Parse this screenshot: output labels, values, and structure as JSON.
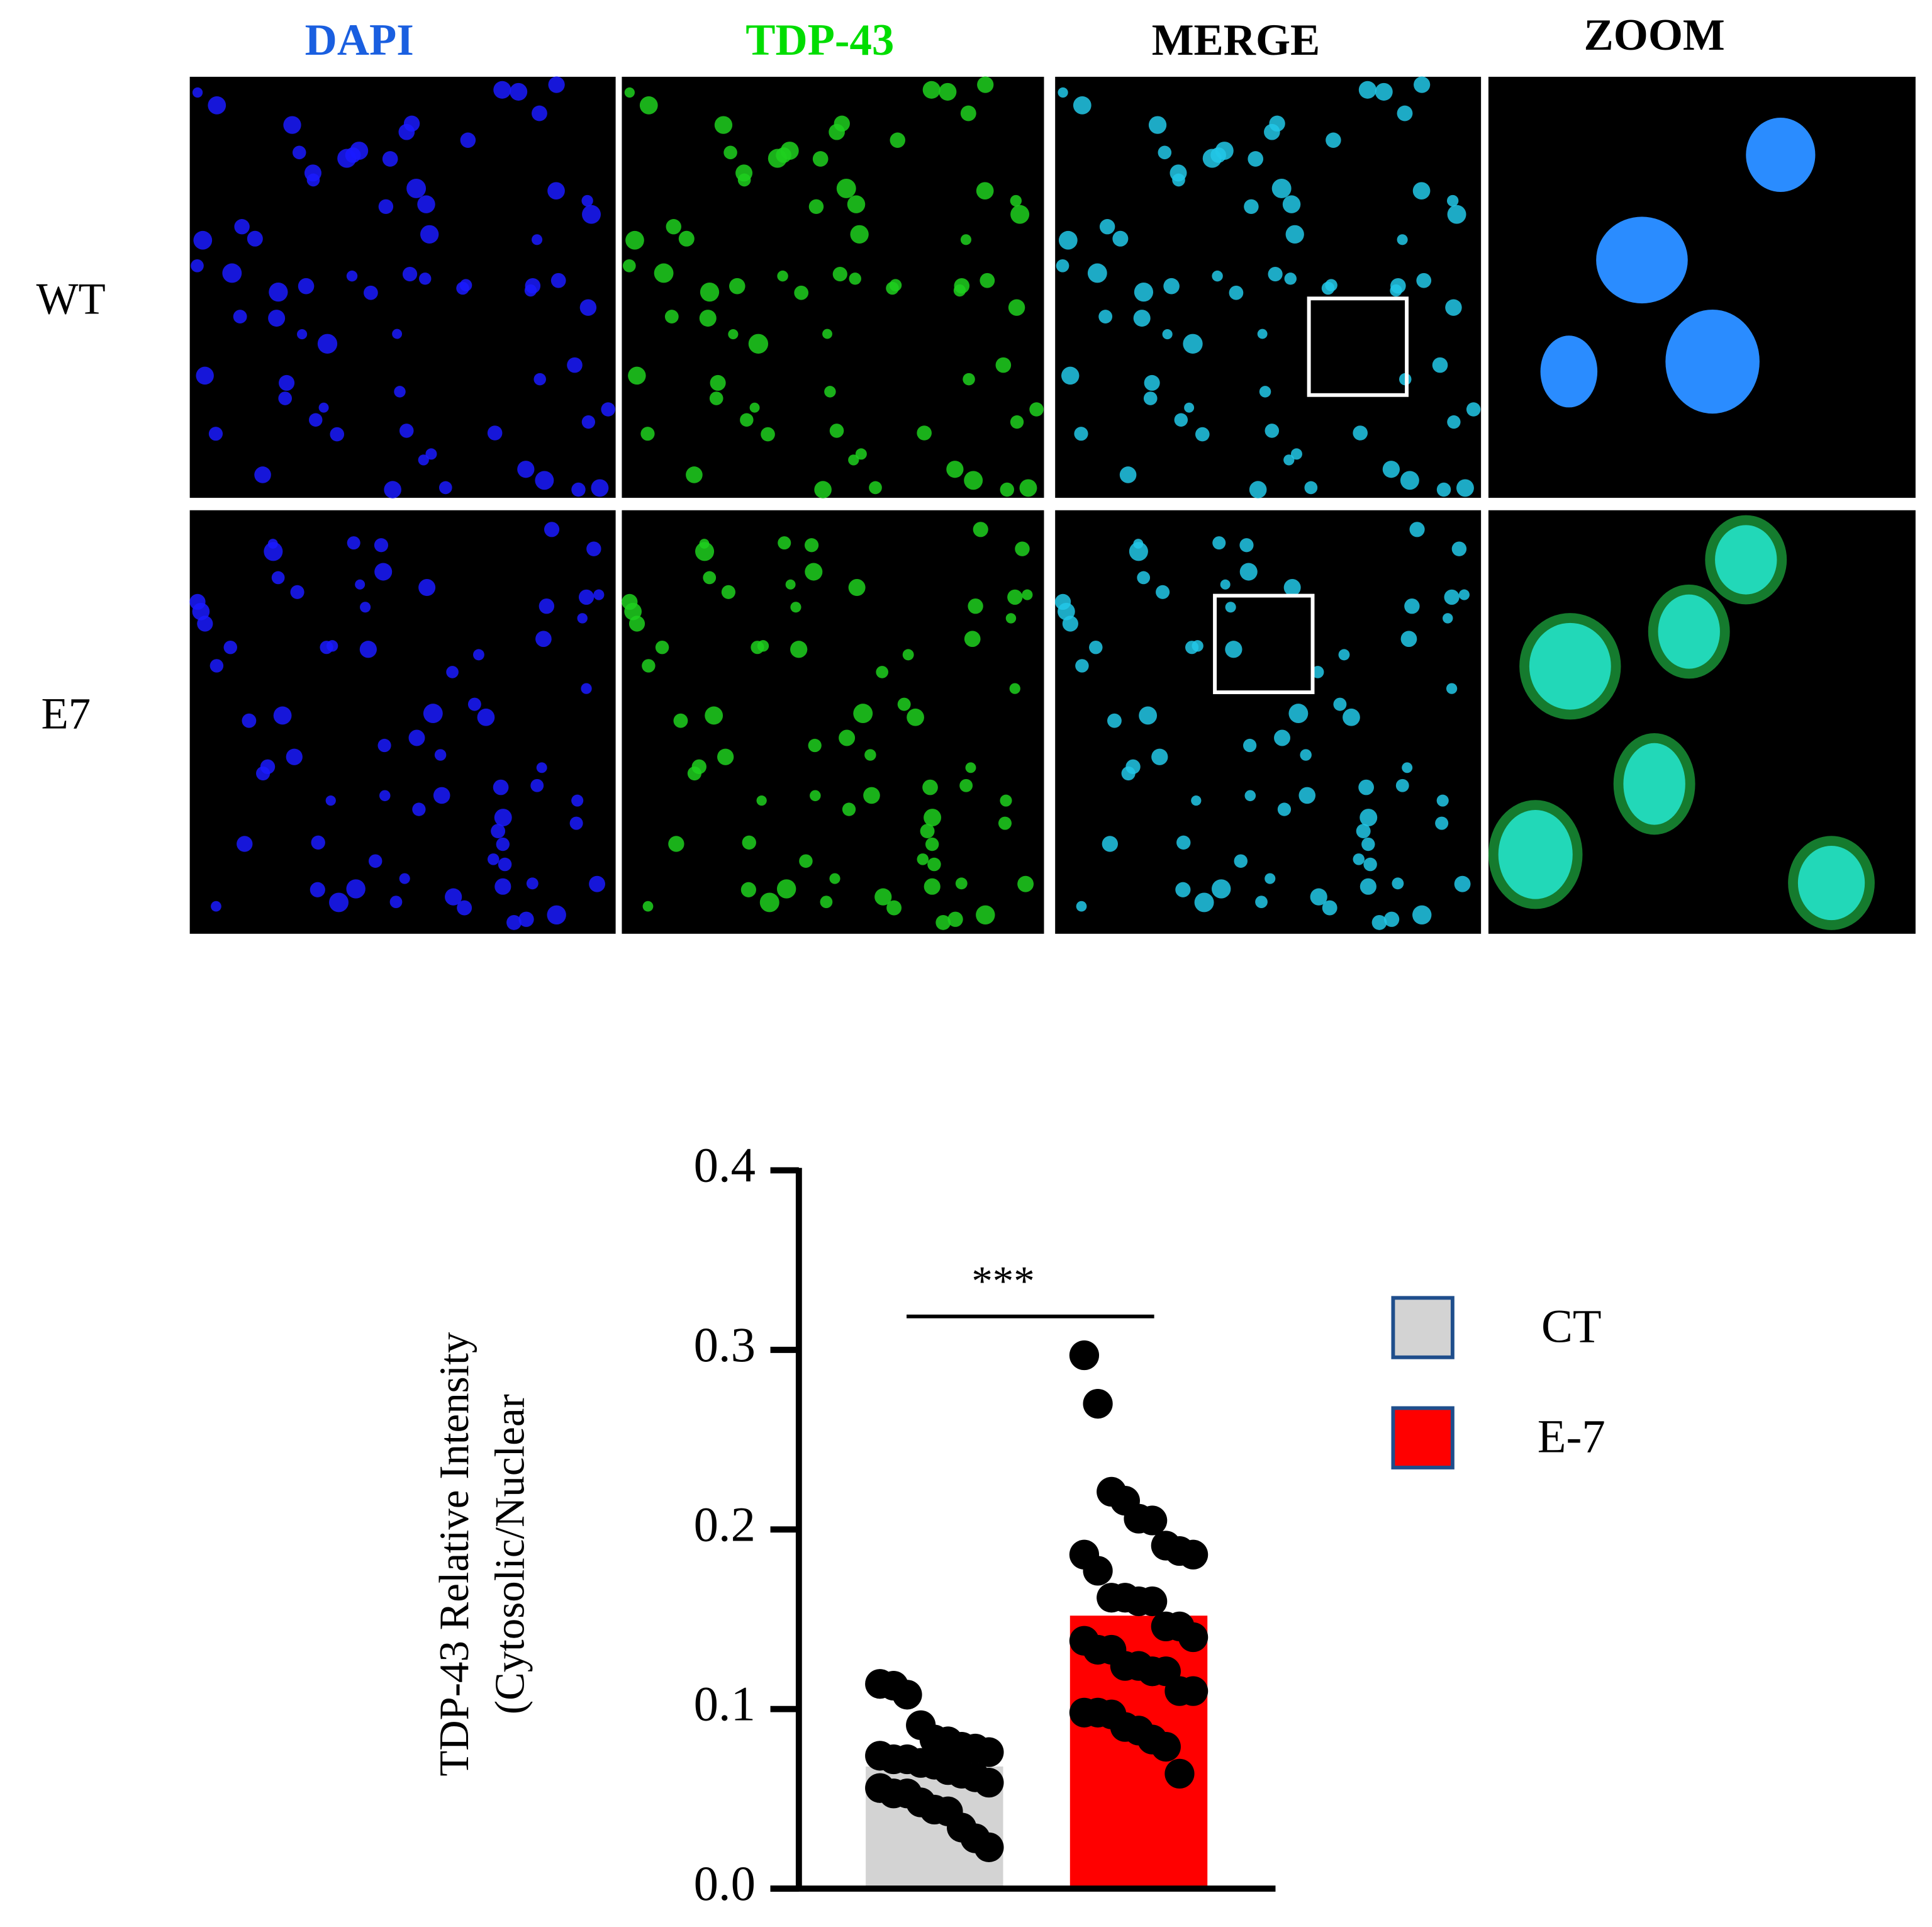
{
  "figure": {
    "columns": [
      "DAPI",
      "TDP-43",
      "MERGE",
      "ZOOM"
    ],
    "rows": [
      "WT",
      "E7"
    ]
  },
  "chart_data": {
    "type": "bar",
    "ylabel": [
      "TDP-43 Relative Intensity",
      "(Cytosolic/Nuclear"
    ],
    "ylim": [
      0,
      0.4
    ],
    "yticks": [
      {
        "value": 0,
        "label": "0.0"
      },
      0.1,
      0.2,
      0.3,
      0.4
    ],
    "annotation": "***",
    "series": [
      {
        "name": "CT",
        "color": "#d3d3d3",
        "value": 0.068,
        "points": [
          0.114,
          0.113,
          0.108,
          0.091,
          0.083,
          0.082,
          0.079,
          0.078,
          0.076,
          0.074,
          0.072,
          0.072,
          0.07,
          0.069,
          0.066,
          0.064,
          0.062,
          0.059,
          0.056,
          0.053,
          0.053,
          0.048,
          0.044,
          0.043,
          0.034,
          0.028,
          0.023
        ]
      },
      {
        "name": "E-7",
        "color": "#ff0000",
        "value": 0.152,
        "points": [
          0.297,
          0.27,
          0.221,
          0.216,
          0.206,
          0.205,
          0.191,
          0.188,
          0.186,
          0.186,
          0.177,
          0.162,
          0.162,
          0.16,
          0.16,
          0.146,
          0.146,
          0.14,
          0.138,
          0.133,
          0.133,
          0.124,
          0.124,
          0.121,
          0.121,
          0.11,
          0.11,
          0.098,
          0.098,
          0.097,
          0.09,
          0.088,
          0.083,
          0.079,
          0.064
        ]
      }
    ]
  }
}
